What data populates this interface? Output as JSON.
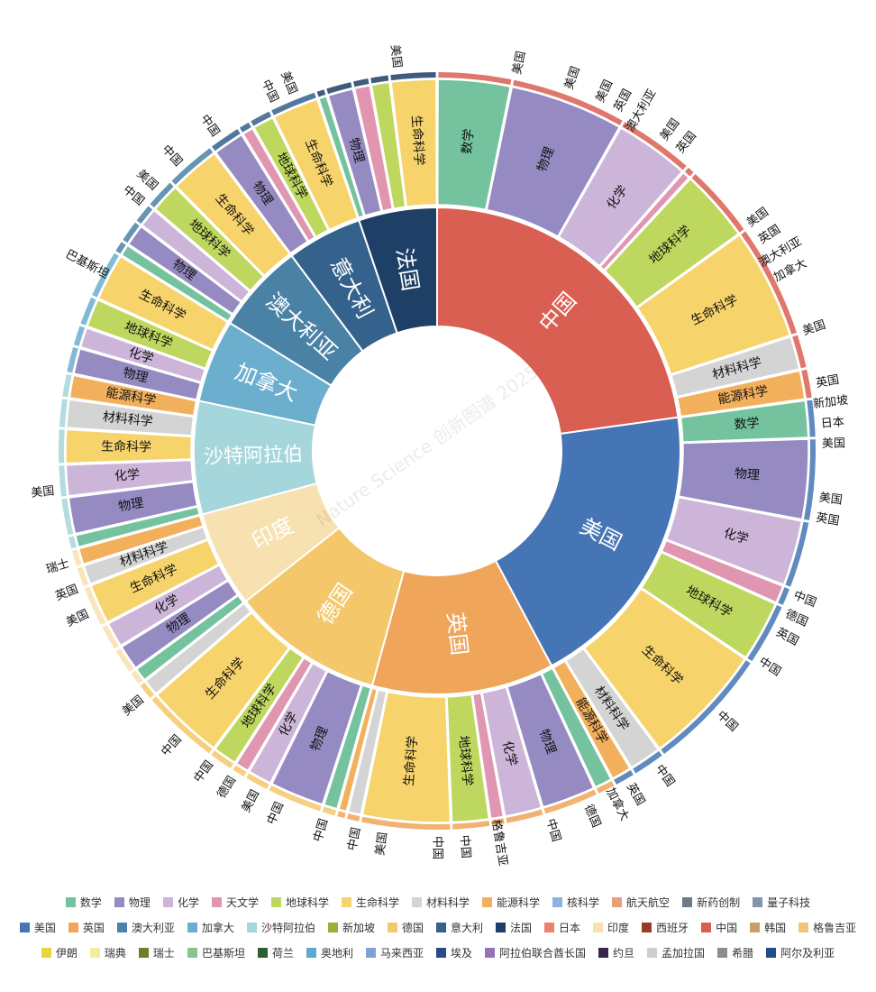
{
  "watermark": "Nature Science 创新图谱 2025",
  "colors": {
    "inner": {
      "中国": "#D95F52",
      "美国": "#4575B4",
      "英国": "#EFA55A",
      "德国": "#F4C76A",
      "印度": "#F8E1B0",
      "沙特阿拉伯": "#A5D6DB",
      "加拿大": "#6BAECE",
      "澳大利亚": "#4A82A6",
      "意大利": "#34628C",
      "法国": "#1E3F66"
    },
    "fields": {
      "数学": "#74C29E",
      "物理": "#958BC2",
      "化学": "#CCB5D9",
      "天文学": "#E096B0",
      "地球科学": "#BED75E",
      "生命科学": "#F6D36B",
      "材料科学": "#D4D4D4",
      "能源科学": "#F2B05C",
      "核科学": "#8AB4DD",
      "航天航空": "#E7A07A",
      "新药创制": "#6C7A89",
      "量子科技": "#8296AA"
    }
  },
  "chart_data": {
    "type": "sunburst",
    "title": "",
    "inner_ring": [
      {
        "name": "中国",
        "value": 22.8
      },
      {
        "name": "美国",
        "value": 19.4
      },
      {
        "name": "英国",
        "value": 12.1
      },
      {
        "name": "德国",
        "value": 10.1
      },
      {
        "name": "印度",
        "value": 6.4
      },
      {
        "name": "沙特阿拉伯",
        "value": 7.5
      },
      {
        "name": "加拿大",
        "value": 5.5
      },
      {
        "name": "澳大利亚",
        "value": 6.0
      },
      {
        "name": "意大利",
        "value": 5.0
      },
      {
        "name": "法国",
        "value": 5.2
      }
    ],
    "middle_ring": {
      "中国": [
        {
          "name": "数学",
          "value": 3.2
        },
        {
          "name": "物理",
          "value": 5.0
        },
        {
          "name": "化学",
          "value": 3.3
        },
        {
          "name": "天文学",
          "value": 0.4
        },
        {
          "name": "地球科学",
          "value": 3.2
        },
        {
          "name": "生命科学",
          "value": 4.9
        },
        {
          "name": "材料科学",
          "value": 1.5
        },
        {
          "name": "能源科学",
          "value": 1.3
        }
      ],
      "美国": [
        {
          "name": "数学",
          "value": 1.6
        },
        {
          "name": "物理",
          "value": 3.4
        },
        {
          "name": "化学",
          "value": 2.8
        },
        {
          "name": "天文学",
          "value": 0.8
        },
        {
          "name": "地球科学",
          "value": 2.6
        },
        {
          "name": "生命科学",
          "value": 5.2
        },
        {
          "name": "材料科学",
          "value": 1.4
        },
        {
          "name": "能源科学",
          "value": 0.9
        }
      ],
      "英国": [
        {
          "name": "数学",
          "value": 0.8
        },
        {
          "name": "物理",
          "value": 2.3
        },
        {
          "name": "化学",
          "value": 1.6
        },
        {
          "name": "天文学",
          "value": 0.6
        },
        {
          "name": "地球科学",
          "value": 1.6
        },
        {
          "name": "生命科学",
          "value": 3.7
        },
        {
          "name": "材料科学",
          "value": 0.6
        },
        {
          "name": "能源科学",
          "value": 0.4
        }
      ],
      "德国": [
        {
          "name": "数学",
          "value": 0.6
        },
        {
          "name": "物理",
          "value": 2.2
        },
        {
          "name": "化学",
          "value": 1.0
        },
        {
          "name": "天文学",
          "value": 0.6
        },
        {
          "name": "地球科学",
          "value": 1.0
        },
        {
          "name": "生命科学",
          "value": 3.1
        },
        {
          "name": "材料科学",
          "value": 0.7
        }
      ],
      "印度": [
        {
          "name": "数学",
          "value": 0.5
        },
        {
          "name": "物理",
          "value": 0.9
        },
        {
          "name": "化学",
          "value": 0.9
        },
        {
          "name": "生命科学",
          "value": 1.4
        },
        {
          "name": "材料科学",
          "value": 0.7
        },
        {
          "name": "能源科学",
          "value": 0.6
        }
      ],
      "沙特阿拉伯": [
        {
          "name": "数学",
          "value": 0.5
        },
        {
          "name": "物理",
          "value": 1.4
        },
        {
          "name": "化学",
          "value": 1.2
        },
        {
          "name": "生命科学",
          "value": 1.3
        },
        {
          "name": "材料科学",
          "value": 1.1
        },
        {
          "name": "能源科学",
          "value": 0.9
        }
      ],
      "加拿大": [
        {
          "name": "物理",
          "value": 1.0
        },
        {
          "name": "化学",
          "value": 0.8
        },
        {
          "name": "地球科学",
          "value": 1.1
        },
        {
          "name": "生命科学",
          "value": 1.8
        }
      ],
      "澳大利亚": [
        {
          "name": "数学",
          "value": 0.5
        },
        {
          "name": "物理",
          "value": 0.9
        },
        {
          "name": "化学",
          "value": 0.8
        },
        {
          "name": "地球科学",
          "value": 1.2
        },
        {
          "name": "生命科学",
          "value": 2.0
        }
      ],
      "意大利": [
        {
          "name": "物理",
          "value": 1.3
        },
        {
          "name": "天文学",
          "value": 0.5
        },
        {
          "name": "地球科学",
          "value": 0.9
        },
        {
          "name": "生命科学",
          "value": 1.9
        }
      ],
      "法国": [
        {
          "name": "数学",
          "value": 0.4
        },
        {
          "name": "物理",
          "value": 1.1
        },
        {
          "name": "天文学",
          "value": 0.7
        },
        {
          "name": "地球科学",
          "value": 0.8
        },
        {
          "name": "生命科学",
          "value": 1.9
        }
      ]
    },
    "outer_ring_labels": [
      {
        "text": "美国",
        "angle": 12
      },
      {
        "text": "美国",
        "angle": 20
      },
      {
        "text": "美国",
        "angle": 25
      },
      {
        "text": "英国",
        "angle": 28
      },
      {
        "text": "澳大利亚",
        "angle": 31
      },
      {
        "text": "美国",
        "angle": 36
      },
      {
        "text": "英国",
        "angle": 39
      },
      {
        "text": "美国",
        "angle": 54
      },
      {
        "text": "英国",
        "angle": 57
      },
      {
        "text": "澳大利亚",
        "angle": 60
      },
      {
        "text": "加拿大",
        "angle": 63
      },
      {
        "text": "美国",
        "angle": 72
      },
      {
        "text": "英国",
        "angle": 80
      },
      {
        "text": "新加坡",
        "angle": 83
      },
      {
        "text": "日本",
        "angle": 86
      },
      {
        "text": "美国",
        "angle": 89
      },
      {
        "text": "美国",
        "angle": 97
      },
      {
        "text": "英国",
        "angle": 100
      },
      {
        "text": "中国",
        "angle": 112
      },
      {
        "text": "德国",
        "angle": 115
      },
      {
        "text": "英国",
        "angle": 118
      },
      {
        "text": "中国",
        "angle": 123
      },
      {
        "text": "中国",
        "angle": 133
      },
      {
        "text": "中国",
        "angle": 145
      },
      {
        "text": "英国",
        "angle": 150
      },
      {
        "text": "加拿大",
        "angle": 153
      },
      {
        "text": "德国",
        "angle": 157
      },
      {
        "text": "中国",
        "angle": 163
      },
      {
        "text": "格鲁吉亚",
        "angle": 171
      },
      {
        "text": "中国",
        "angle": 176
      },
      {
        "text": "中国",
        "angle": 180
      },
      {
        "text": "美国",
        "angle": 188
      },
      {
        "text": "中国",
        "angle": 192
      },
      {
        "text": "中国",
        "angle": 197
      },
      {
        "text": "中国",
        "angle": 204
      },
      {
        "text": "美国",
        "angle": 208
      },
      {
        "text": "德国",
        "angle": 212
      },
      {
        "text": "中国",
        "angle": 216
      },
      {
        "text": "中国",
        "angle": 222
      },
      {
        "text": "美国",
        "angle": 230
      },
      {
        "text": "美国",
        "angle": 245
      },
      {
        "text": "英国",
        "angle": 249
      },
      {
        "text": "瑞士",
        "angle": 253
      },
      {
        "text": "美国",
        "angle": 264
      },
      {
        "text": "巴基斯坦",
        "angle": 298
      },
      {
        "text": "中国",
        "angle": 310
      },
      {
        "text": "美国",
        "angle": 313
      },
      {
        "text": "中国",
        "angle": 318
      },
      {
        "text": "中国",
        "angle": 325
      },
      {
        "text": "中国",
        "angle": 335
      },
      {
        "text": "美国",
        "angle": 338
      },
      {
        "text": "美国",
        "angle": 354
      }
    ],
    "legend_fields": [
      "数学",
      "物理",
      "化学",
      "天文学",
      "地球科学",
      "生命科学",
      "材料科学",
      "能源科学",
      "核科学",
      "航天航空",
      "新药创制",
      "量子科技"
    ],
    "legend_countries": [
      {
        "name": "美国",
        "color": "#4575B4"
      },
      {
        "name": "英国",
        "color": "#EFA55A"
      },
      {
        "name": "澳大利亚",
        "color": "#4A82A6"
      },
      {
        "name": "加拿大",
        "color": "#6BAECE"
      },
      {
        "name": "沙特阿拉伯",
        "color": "#A5D6DB"
      },
      {
        "name": "新加坡",
        "color": "#9AAF3A"
      },
      {
        "name": "德国",
        "color": "#F4C76A"
      },
      {
        "name": "意大利",
        "color": "#34628C"
      },
      {
        "name": "法国",
        "color": "#1E3F66"
      },
      {
        "name": "日本",
        "color": "#EE8070"
      },
      {
        "name": "印度",
        "color": "#F8E1B0"
      },
      {
        "name": "西班牙",
        "color": "#9A3B28"
      },
      {
        "name": "中国",
        "color": "#D95F52"
      },
      {
        "name": "韩国",
        "color": "#C6A06A"
      },
      {
        "name": "格鲁吉亚",
        "color": "#F2C475"
      },
      {
        "name": "伊朗",
        "color": "#E6D63A"
      },
      {
        "name": "瑞典",
        "color": "#F4EDA0"
      },
      {
        "name": "瑞士",
        "color": "#6E7E2A"
      },
      {
        "name": "巴基斯坦",
        "color": "#86C68C"
      },
      {
        "name": "荷兰",
        "color": "#2C5E34"
      },
      {
        "name": "奥地利",
        "color": "#5FA8CF"
      },
      {
        "name": "马来西亚",
        "color": "#7FA3D6"
      },
      {
        "name": "埃及",
        "color": "#2B4A8A"
      },
      {
        "name": "阿拉伯联合酋长国",
        "color": "#9673B9"
      },
      {
        "name": "约旦",
        "color": "#3A2648"
      },
      {
        "name": "孟加拉国",
        "color": "#CFCFCF"
      },
      {
        "name": "希腊",
        "color": "#8C8C8C"
      },
      {
        "name": "阿尔及利亚",
        "color": "#1F4E89"
      }
    ]
  }
}
